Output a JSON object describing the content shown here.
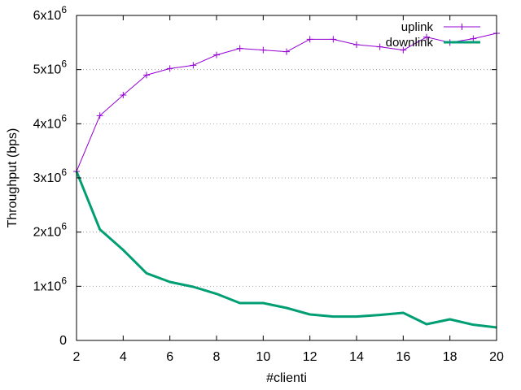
{
  "chart_data": {
    "type": "line",
    "title": "",
    "xlabel": "#clienti",
    "ylabel": "Throughput (bps)",
    "xlim": [
      2,
      20
    ],
    "ylim": [
      0,
      6000000
    ],
    "x_ticks": [
      2,
      4,
      6,
      8,
      10,
      12,
      14,
      16,
      18,
      20
    ],
    "y_ticks": [
      {
        "value": 0,
        "label": "0",
        "exp": ""
      },
      {
        "value": 1000000,
        "label": "1x10",
        "exp": "6"
      },
      {
        "value": 2000000,
        "label": "2x10",
        "exp": "6"
      },
      {
        "value": 3000000,
        "label": "3x10",
        "exp": "6"
      },
      {
        "value": 4000000,
        "label": "4x10",
        "exp": "6"
      },
      {
        "value": 5000000,
        "label": "5x10",
        "exp": "6"
      },
      {
        "value": 6000000,
        "label": "6x10",
        "exp": "6"
      }
    ],
    "grid": "horizontal dotted",
    "legend_position": "top-right",
    "x": [
      2,
      3,
      4,
      5,
      6,
      7,
      8,
      9,
      10,
      11,
      12,
      13,
      14,
      15,
      16,
      17,
      18,
      19,
      20
    ],
    "series": [
      {
        "name": "uplink",
        "color": "#9400d3",
        "marker": "plus",
        "values": [
          3120000,
          4150000,
          4530000,
          4900000,
          5020000,
          5080000,
          5270000,
          5390000,
          5360000,
          5330000,
          5560000,
          5560000,
          5460000,
          5420000,
          5360000,
          5600000,
          5500000,
          5570000,
          5670000
        ]
      },
      {
        "name": "downlink",
        "color": "#009e73",
        "marker": "none",
        "values": [
          3120000,
          2050000,
          1670000,
          1240000,
          1080000,
          990000,
          860000,
          690000,
          690000,
          600000,
          480000,
          440000,
          440000,
          470000,
          510000,
          300000,
          390000,
          290000,
          240000
        ]
      }
    ]
  }
}
